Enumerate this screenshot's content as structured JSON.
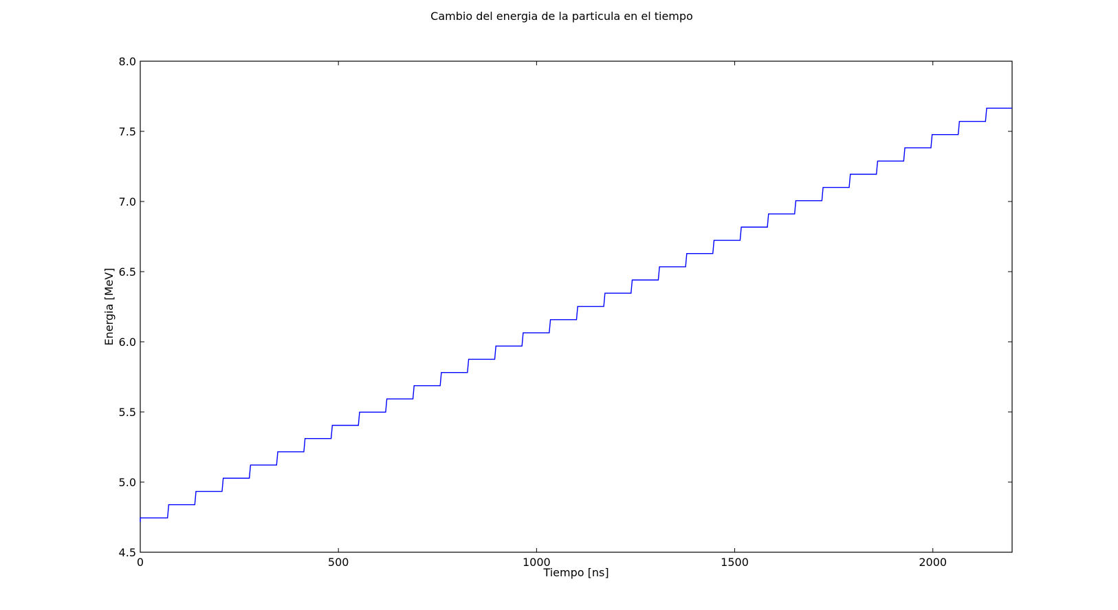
{
  "chart_data": {
    "type": "line",
    "title": "Cambio del energia de la particula en el tiempo",
    "xlabel": "Tiempo [ns]",
    "ylabel": "Energia [MeV]",
    "xlim": [
      0,
      2200
    ],
    "ylim": [
      4.5,
      8.0
    ],
    "xticks": [
      0,
      500,
      1000,
      1500,
      2000
    ],
    "yticks": [
      4.5,
      5.0,
      5.5,
      6.0,
      6.5,
      7.0,
      7.5,
      8.0
    ],
    "xtick_labels": [
      "0",
      "500",
      "1000",
      "1500",
      "2000"
    ],
    "ytick_labels": [
      "4.5",
      "5.0",
      "5.5",
      "6.0",
      "6.5",
      "7.0",
      "7.5",
      "8.0"
    ],
    "grid": false,
    "legend": "none",
    "series": [
      {
        "color": "#0000ff",
        "step_start_x": 0,
        "step_period_x": 68.8,
        "step_rise_x": 3,
        "start_y": 4.745,
        "step_height_y": 0.0942,
        "steps": 32
      }
    ]
  }
}
